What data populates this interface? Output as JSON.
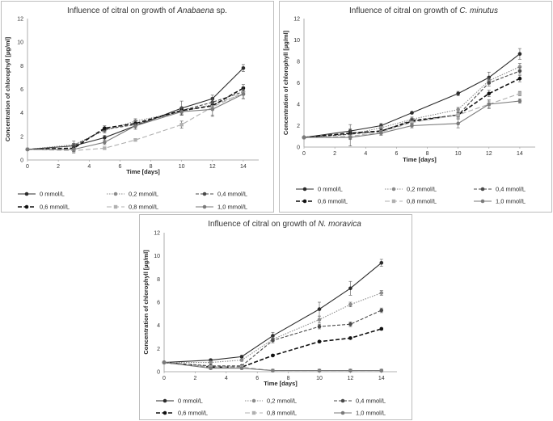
{
  "chart_data": [
    {
      "type": "line",
      "title_prefix": "Influence of citral on growth of ",
      "title_species": "Anabaena",
      "title_suffix": " sp.",
      "xlabel": "Time [days]",
      "ylabel": "Concentration of chlorophyll [µg/ml]",
      "x": [
        0,
        3,
        5,
        7,
        10,
        12,
        14
      ],
      "xticks": [
        0,
        2,
        4,
        6,
        8,
        10,
        12,
        14
      ],
      "yticks": [
        0,
        2,
        4,
        6,
        8,
        10,
        12
      ],
      "xlim": [
        0,
        15
      ],
      "ylim": [
        0,
        12
      ],
      "grid": false,
      "legend_position": "bottom",
      "series": [
        {
          "name": "0 mmol/L",
          "values": [
            0.9,
            1.2,
            1.9,
            2.9,
            4.4,
            5.2,
            7.8
          ],
          "error": [
            0,
            0.2,
            0.2,
            0.3,
            0.6,
            0.3,
            0.3
          ]
        },
        {
          "name": "0,2 mmol/L",
          "values": [
            0.9,
            1.3,
            2.5,
            3.3,
            4.1,
            4.7,
            5.6
          ],
          "error": [
            0,
            0.3,
            0.2,
            0.2,
            0.3,
            0.4,
            0.4
          ]
        },
        {
          "name": "0,4 mmol/L",
          "values": [
            0.9,
            1.2,
            2.6,
            3.0,
            4.2,
            4.9,
            5.8
          ],
          "error": [
            0,
            0.2,
            0.2,
            0.2,
            0.3,
            0.3,
            0.3
          ]
        },
        {
          "name": "0,6 mmol/L",
          "values": [
            0.9,
            1.0,
            2.7,
            3.1,
            4.2,
            4.6,
            6.1
          ],
          "error": [
            0,
            0.2,
            0.2,
            0.2,
            0.3,
            0.3,
            0.3
          ]
        },
        {
          "name": "0,8 mmol/L",
          "values": [
            0.9,
            0.8,
            1.0,
            1.7,
            3.0,
            4.5,
            5.7
          ],
          "error": [
            0,
            0.2,
            0.1,
            0.1,
            0.3,
            0.8,
            0.5
          ]
        },
        {
          "name": "1,0 mmol/L",
          "values": [
            0.9,
            0.9,
            1.5,
            2.9,
            4.1,
            4.3,
            5.6
          ],
          "error": [
            0,
            0.2,
            0.2,
            0.2,
            0.3,
            0.5,
            0.4
          ]
        }
      ],
      "legend_labels": [
        "0 mmol/L",
        "0,2 mmol/L",
        "0,4 mmol/L",
        "0,6 mmol/L",
        "0,8 mmol/L",
        "1,0 mmol/L"
      ]
    },
    {
      "type": "line",
      "title_prefix": "Influence of citral on growth of ",
      "title_species": "C. minutus",
      "title_suffix": "",
      "xlabel": "Time [days]",
      "ylabel": "Concentration of chlorophyll [µg/ml]",
      "x": [
        0,
        3,
        5,
        7,
        10,
        12,
        14
      ],
      "xticks": [
        0,
        2,
        4,
        6,
        8,
        10,
        12,
        14
      ],
      "yticks": [
        0,
        2,
        4,
        6,
        8,
        10,
        12
      ],
      "xlim": [
        0,
        15
      ],
      "ylim": [
        0,
        12
      ],
      "grid": false,
      "legend_position": "bottom",
      "series": [
        {
          "name": "0 mmol/L",
          "values": [
            0.9,
            1.5,
            2.0,
            3.2,
            5.0,
            6.5,
            8.7
          ],
          "error": [
            0,
            0.6,
            0.2,
            0.1,
            0.2,
            0.5,
            0.5
          ]
        },
        {
          "name": "0,2 mmol/L",
          "values": [
            0.9,
            1.2,
            1.8,
            2.6,
            3.5,
            6.2,
            7.5
          ],
          "error": [
            0,
            0.3,
            0.2,
            0.2,
            0.2,
            0.3,
            0.3
          ]
        },
        {
          "name": "0,4 mmol/L",
          "values": [
            0.9,
            1.2,
            1.5,
            2.5,
            3.0,
            6.0,
            7.1
          ],
          "error": [
            0,
            0.3,
            0.2,
            0.2,
            0.2,
            0.3,
            0.3
          ]
        },
        {
          "name": "0,6 mmol/L",
          "values": [
            0.9,
            1.3,
            1.5,
            2.4,
            3.0,
            5.0,
            6.4
          ],
          "error": [
            0,
            0.3,
            0.2,
            0.2,
            0.2,
            0.3,
            0.3
          ]
        },
        {
          "name": "0,8 mmol/L",
          "values": [
            0.9,
            1.0,
            1.4,
            2.3,
            3.0,
            4.0,
            5.0
          ],
          "error": [
            0,
            0.3,
            0.2,
            0.2,
            0.3,
            0.3,
            0.2
          ]
        },
        {
          "name": "1,0 mmol/L",
          "values": [
            0.9,
            0.9,
            1.3,
            2.0,
            2.2,
            4.0,
            4.3
          ],
          "error": [
            0,
            0.8,
            0.2,
            0.2,
            0.4,
            0.4,
            0.2
          ]
        }
      ],
      "legend_labels": [
        "0 mmol/L",
        "0,2 mmol/L",
        "0,4 mmol/L",
        "0,6 mmol/L",
        "0,8 mmol/L",
        "1,0 mmol/L"
      ]
    },
    {
      "type": "line",
      "title_prefix": "Influence of citral on growth of ",
      "title_species": "N. moravica",
      "title_suffix": "",
      "xlabel": "Time [days]",
      "ylabel": "Concentration of chlorophyll [µg/ml]",
      "x": [
        0,
        3,
        5,
        7,
        10,
        12,
        14
      ],
      "xticks": [
        0,
        2,
        4,
        6,
        8,
        10,
        12,
        14
      ],
      "yticks": [
        0,
        2,
        4,
        6,
        8,
        10,
        12
      ],
      "xlim": [
        0,
        15
      ],
      "ylim": [
        0,
        12
      ],
      "grid": false,
      "legend_position": "bottom",
      "series": [
        {
          "name": "0 mmol/L",
          "values": [
            0.8,
            1.0,
            1.3,
            3.1,
            5.4,
            7.2,
            9.4
          ],
          "error": [
            0,
            0.1,
            0.1,
            0.3,
            0.6,
            0.6,
            0.3
          ]
        },
        {
          "name": "0,2 mmol/L",
          "values": [
            0.8,
            0.8,
            1.0,
            2.8,
            4.5,
            5.8,
            6.8
          ],
          "error": [
            0,
            0.1,
            0.1,
            0.2,
            0.3,
            0.2,
            0.2
          ]
        },
        {
          "name": "0,4 mmol/L",
          "values": [
            0.8,
            0.5,
            0.5,
            2.7,
            3.9,
            4.1,
            5.3
          ],
          "error": [
            0,
            0.1,
            0.1,
            0.2,
            0.2,
            0.2,
            0.2
          ]
        },
        {
          "name": "0,6 mmol/L",
          "values": [
            0.8,
            0.4,
            0.4,
            1.4,
            2.6,
            2.9,
            3.7
          ],
          "error": [
            0,
            0.1,
            0.1,
            0.1,
            0.1,
            0.1,
            0.1
          ]
        },
        {
          "name": "0,8 mmol/L",
          "values": [
            0.8,
            0.4,
            0.4,
            0.1,
            0.1,
            0.1,
            0.1
          ],
          "error": [
            0,
            0.1,
            0.1,
            0.05,
            0.05,
            0.05,
            0.05
          ]
        },
        {
          "name": "1,0 mmol/L",
          "values": [
            0.8,
            0.3,
            0.3,
            0.1,
            0.1,
            0.1,
            0.1
          ],
          "error": [
            0,
            0.1,
            0.1,
            0.05,
            0.05,
            0.05,
            0.05
          ]
        }
      ],
      "legend_labels": [
        "0 mmol/L",
        "0,2 mmol/L",
        "0,4 mmol/L",
        "0,6 mmol/L",
        "0,8 mmol/L",
        "1,0 mmol/L"
      ]
    }
  ],
  "styles": [
    {
      "color": "#2b2b2b",
      "dash": "",
      "marker": "circle"
    },
    {
      "color": "#8c8c8c",
      "dash": "1.5 1.5",
      "marker": "circle"
    },
    {
      "color": "#4a4a4a",
      "dash": "4 2",
      "marker": "circle"
    },
    {
      "color": "#111111",
      "dash": "5 2.5",
      "marker": "circle"
    },
    {
      "color": "#b0b0b0",
      "dash": "6 3",
      "marker": "square"
    },
    {
      "color": "#7a7a7a",
      "dash": "",
      "marker": "circle"
    }
  ]
}
